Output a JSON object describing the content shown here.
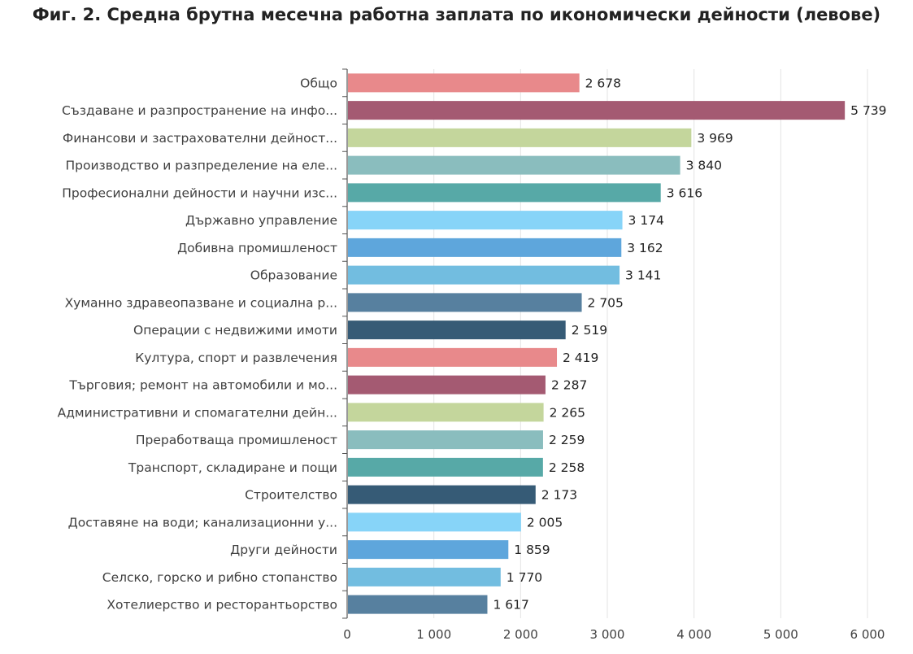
{
  "chart_data": {
    "type": "bar",
    "orientation": "horizontal",
    "title": "Фиг. 2. Средна брутна месечна работна заплата по икономически дейности (левове)",
    "xlabel": "",
    "ylabel": "",
    "xlim": [
      0,
      6000
    ],
    "x_ticks": [
      0,
      1000,
      2000,
      3000,
      4000,
      5000,
      6000
    ],
    "x_tick_labels": [
      "0",
      "1 000",
      "2 000",
      "3 000",
      "4 000",
      "5 000",
      "6 000"
    ],
    "grid": true,
    "categories": [
      "Общо",
      "Създаване и разпространение на инфо...",
      "Финансови и застрахователни дейност...",
      "Производство и разпределение на еле...",
      "Професионални дейности и научни изс...",
      "Държавно управление",
      "Добивна промишленост",
      "Образование",
      "Хуманно здравеопазване и социална р...",
      "Операции с недвижими имоти",
      "Култура, спорт и развлечения",
      "Търговия; ремонт на автомобили и мо...",
      "Административни и спомагателни дейн...",
      "Преработваща промишленост",
      "Транспорт, складиране и пощи",
      "Строителство",
      "Доставяне на води; канализационни у...",
      "Други дейности",
      "Селско, горско и рибно стопанство",
      "Хотелиерство и ресторантьорство"
    ],
    "values": [
      2678,
      5739,
      3969,
      3840,
      3616,
      3174,
      3162,
      3141,
      2705,
      2519,
      2419,
      2287,
      2265,
      2259,
      2258,
      2173,
      2005,
      1859,
      1770,
      1617
    ],
    "value_labels": [
      "2 678",
      "5 739",
      "3 969",
      "3 840",
      "3 616",
      "3 174",
      "3 162",
      "3 141",
      "2 705",
      "2 519",
      "2 419",
      "2 287",
      "2 265",
      "2 259",
      "2 258",
      "2 173",
      "2 005",
      "1 859",
      "1 770",
      "1 617"
    ],
    "colors": [
      "#e8898b",
      "#a45a72",
      "#c4d69c",
      "#8abdbe",
      "#57a9a7",
      "#87d4f8",
      "#5ea6dc",
      "#72bde0",
      "#57809f",
      "#365b76",
      "#e8898b",
      "#a45a72",
      "#c4d69c",
      "#8abdbe",
      "#57a9a7",
      "#365b76",
      "#87d4f8",
      "#5ea6dc",
      "#72bde0",
      "#57809f"
    ]
  }
}
